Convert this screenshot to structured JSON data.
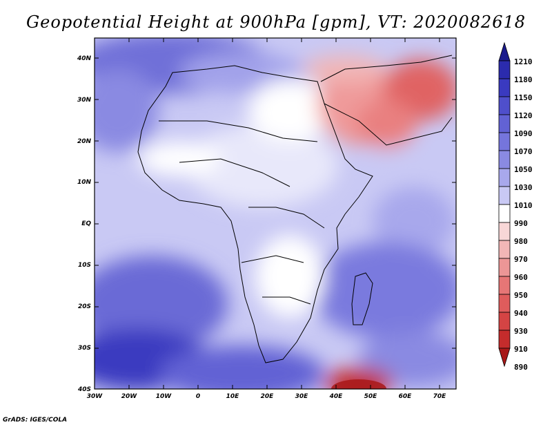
{
  "title": "Geopotential Height at 900hPa [gpm], VT: 2020082618",
  "credit": "GrADS: IGES/COLA",
  "map": {
    "lon_range": [
      -30,
      75
    ],
    "lat_range": [
      -40,
      45
    ],
    "lat_ticks": [
      "40N",
      "30N",
      "20N",
      "10N",
      "EQ",
      "10S",
      "20S",
      "30S",
      "40S"
    ],
    "lon_ticks": [
      "30W",
      "20W",
      "10W",
      "0",
      "10E",
      "20E",
      "30E",
      "40E",
      "50E",
      "60E",
      "70E"
    ],
    "colorbar": {
      "levels": [
        "1210",
        "1180",
        "1150",
        "1120",
        "1090",
        "1070",
        "1050",
        "1030",
        "1010",
        "990",
        "980",
        "970",
        "960",
        "950",
        "940",
        "930",
        "910",
        "890"
      ],
      "colors": [
        "#1a1a8c",
        "#2b2bad",
        "#3a3ac0",
        "#4f4fcb",
        "#6262d4",
        "#7575dc",
        "#8a8ae2",
        "#a8a8ec",
        "#c9c9f4",
        "#ffffff",
        "#f8d7d7",
        "#f2b6b6",
        "#ec9696",
        "#e67676",
        "#df5c5c",
        "#d44444",
        "#c42c2c",
        "#a81818"
      ]
    }
  }
}
